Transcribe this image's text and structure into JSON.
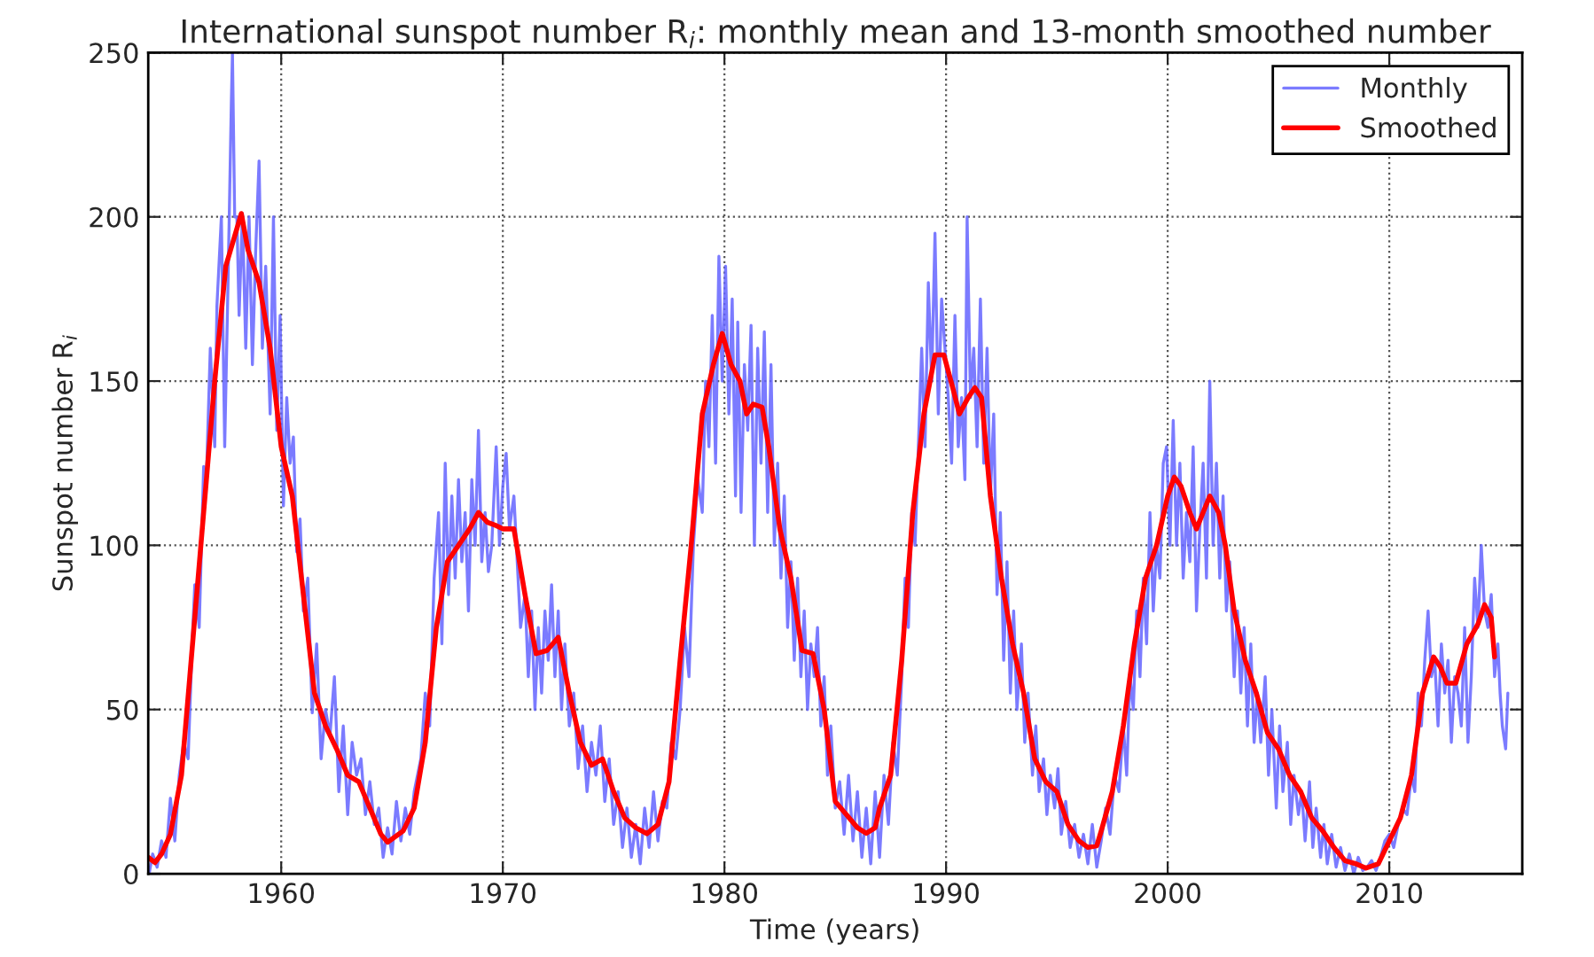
{
  "chart_data": {
    "type": "line",
    "title": "International sunspot number R$_{i}$: monthly mean and 13-month smoothed number",
    "xlabel": "Time (years)",
    "ylabel": "Sunspot number R$_{i}$",
    "xlim": [
      1954,
      2016
    ],
    "ylim": [
      0,
      250
    ],
    "xticks": [
      1960,
      1970,
      1980,
      1990,
      2000,
      2010
    ],
    "yticks": [
      0,
      50,
      100,
      150,
      200,
      250
    ],
    "grid": true,
    "legend": "top right",
    "series": [
      {
        "name": "Monthly",
        "color": "#6464ff",
        "x": [
          1954.04,
          1954.2,
          1954.4,
          1954.6,
          1954.8,
          1955.0,
          1955.2,
          1955.4,
          1955.6,
          1955.8,
          1956.0,
          1956.1,
          1956.3,
          1956.5,
          1956.6,
          1956.8,
          1957.0,
          1957.1,
          1957.3,
          1957.45,
          1957.6,
          1957.75,
          1957.8,
          1957.9,
          1958.0,
          1958.1,
          1958.25,
          1958.4,
          1958.55,
          1958.7,
          1958.85,
          1959.0,
          1959.15,
          1959.3,
          1959.5,
          1959.65,
          1959.8,
          1959.95,
          1960.1,
          1960.25,
          1960.4,
          1960.55,
          1960.7,
          1960.85,
          1961.0,
          1961.2,
          1961.4,
          1961.6,
          1961.8,
          1962.0,
          1962.2,
          1962.4,
          1962.6,
          1962.8,
          1963.0,
          1963.2,
          1963.4,
          1963.6,
          1963.8,
          1964.0,
          1964.2,
          1964.4,
          1964.6,
          1964.8,
          1965.0,
          1965.2,
          1965.4,
          1965.6,
          1965.8,
          1966.0,
          1966.3,
          1966.5,
          1966.7,
          1966.9,
          1967.1,
          1967.25,
          1967.4,
          1967.55,
          1967.7,
          1967.85,
          1968.0,
          1968.15,
          1968.3,
          1968.45,
          1968.6,
          1968.75,
          1968.9,
          1969.05,
          1969.2,
          1969.35,
          1969.5,
          1969.7,
          1969.85,
          1970.0,
          1970.15,
          1970.3,
          1970.5,
          1970.65,
          1970.8,
          1971.0,
          1971.15,
          1971.3,
          1971.45,
          1971.6,
          1971.75,
          1971.9,
          1972.05,
          1972.2,
          1972.35,
          1972.5,
          1972.65,
          1972.8,
          1973.0,
          1973.2,
          1973.4,
          1973.6,
          1973.8,
          1974.0,
          1974.2,
          1974.4,
          1974.6,
          1974.8,
          1975.0,
          1975.2,
          1975.4,
          1975.6,
          1975.8,
          1976.0,
          1976.2,
          1976.4,
          1976.6,
          1976.8,
          1977.0,
          1977.2,
          1977.4,
          1977.6,
          1977.8,
          1978.0,
          1978.2,
          1978.4,
          1978.6,
          1978.8,
          1979.0,
          1979.15,
          1979.3,
          1979.45,
          1979.6,
          1979.75,
          1979.9,
          1980.05,
          1980.2,
          1980.35,
          1980.5,
          1980.6,
          1980.75,
          1980.9,
          1981.05,
          1981.2,
          1981.35,
          1981.5,
          1981.65,
          1981.8,
          1981.95,
          1982.1,
          1982.25,
          1982.4,
          1982.55,
          1982.7,
          1982.85,
          1983.0,
          1983.15,
          1983.3,
          1983.45,
          1983.6,
          1983.75,
          1983.9,
          1984.05,
          1984.2,
          1984.35,
          1984.5,
          1984.65,
          1984.8,
          1985.0,
          1985.2,
          1985.4,
          1985.6,
          1985.8,
          1986.0,
          1986.2,
          1986.4,
          1986.6,
          1986.8,
          1987.0,
          1987.2,
          1987.4,
          1987.6,
          1987.8,
          1988.0,
          1988.15,
          1988.3,
          1988.45,
          1988.6,
          1988.75,
          1988.9,
          1989.05,
          1989.2,
          1989.35,
          1989.5,
          1989.65,
          1989.8,
          1989.95,
          1990.1,
          1990.25,
          1990.4,
          1990.55,
          1990.7,
          1990.85,
          1990.95,
          1991.1,
          1991.25,
          1991.4,
          1991.55,
          1991.7,
          1991.85,
          1992.0,
          1992.15,
          1992.3,
          1992.45,
          1992.6,
          1992.75,
          1992.9,
          1993.05,
          1993.2,
          1993.4,
          1993.55,
          1993.7,
          1993.9,
          1994.05,
          1994.2,
          1994.4,
          1994.55,
          1994.7,
          1994.9,
          1995.05,
          1995.2,
          1995.4,
          1995.6,
          1995.8,
          1996.0,
          1996.2,
          1996.4,
          1996.6,
          1996.8,
          1997.0,
          1997.2,
          1997.4,
          1997.6,
          1997.8,
          1998.0,
          1998.15,
          1998.3,
          1998.45,
          1998.6,
          1998.75,
          1998.9,
          1999.05,
          1999.2,
          1999.35,
          1999.5,
          1999.65,
          1999.8,
          1999.95,
          2000.1,
          2000.25,
          2000.4,
          2000.55,
          2000.7,
          2000.85,
          2001.0,
          2001.15,
          2001.3,
          2001.45,
          2001.6,
          2001.75,
          2001.9,
          2002.05,
          2002.2,
          2002.35,
          2002.5,
          2002.65,
          2002.8,
          2003.0,
          2003.15,
          2003.3,
          2003.45,
          2003.6,
          2003.75,
          2003.9,
          2004.05,
          2004.2,
          2004.4,
          2004.55,
          2004.7,
          2004.9,
          2005.05,
          2005.2,
          2005.4,
          2005.55,
          2005.7,
          2005.9,
          2006.05,
          2006.2,
          2006.4,
          2006.55,
          2006.7,
          2006.9,
          2007.05,
          2007.2,
          2007.4,
          2007.6,
          2007.8,
          2008.0,
          2008.2,
          2008.4,
          2008.6,
          2008.8,
          2009.0,
          2009.2,
          2009.4,
          2009.6,
          2009.8,
          2010.0,
          2010.2,
          2010.4,
          2010.6,
          2010.8,
          2011.0,
          2011.15,
          2011.3,
          2011.45,
          2011.6,
          2011.75,
          2011.9,
          2012.05,
          2012.2,
          2012.35,
          2012.5,
          2012.65,
          2012.8,
          2012.95,
          2013.1,
          2013.25,
          2013.4,
          2013.55,
          2013.7,
          2013.85,
          2014.0,
          2014.15,
          2014.3,
          2014.45,
          2014.6,
          2014.75,
          2014.9,
          2015.0,
          2015.1,
          2015.25,
          2015.35
        ],
        "values": [
          0,
          6,
          2,
          10,
          5,
          23,
          10,
          30,
          40,
          35,
          73,
          88,
          75,
          124,
          115,
          160,
          130,
          173,
          200,
          130,
          180,
          235,
          250,
          200,
          200,
          170,
          201,
          160,
          200,
          155,
          190,
          217,
          160,
          185,
          140,
          200,
          135,
          170,
          112,
          145,
          125,
          133,
          98,
          108,
          80,
          90,
          49,
          70,
          35,
          50,
          42,
          60,
          25,
          45,
          18,
          40,
          30,
          35,
          18,
          28,
          15,
          20,
          5,
          14,
          6,
          22,
          10,
          20,
          12,
          25,
          35,
          55,
          45,
          90,
          110,
          70,
          125,
          85,
          115,
          90,
          120,
          95,
          110,
          80,
          120,
          100,
          135,
          95,
          110,
          92,
          100,
          130,
          100,
          118,
          128,
          105,
          115,
          95,
          75,
          85,
          60,
          80,
          50,
          75,
          55,
          80,
          65,
          88,
          60,
          80,
          50,
          70,
          45,
          55,
          32,
          45,
          25,
          40,
          30,
          45,
          22,
          35,
          15,
          25,
          8,
          20,
          5,
          15,
          3,
          20,
          8,
          25,
          10,
          22,
          20,
          40,
          35,
          50,
          75,
          60,
          100,
          120,
          110,
          150,
          130,
          170,
          125,
          188,
          150,
          185,
          140,
          175,
          115,
          168,
          110,
          155,
          135,
          167,
          100,
          160,
          125,
          165,
          110,
          155,
          100,
          125,
          90,
          115,
          75,
          95,
          65,
          90,
          60,
          80,
          50,
          70,
          60,
          75,
          45,
          60,
          30,
          45,
          20,
          28,
          12,
          30,
          10,
          25,
          5,
          20,
          3,
          25,
          5,
          30,
          15,
          40,
          30,
          60,
          90,
          75,
          110,
          100,
          130,
          160,
          130,
          180,
          150,
          195,
          140,
          175,
          160,
          145,
          125,
          170,
          130,
          145,
          120,
          200,
          145,
          160,
          130,
          175,
          125,
          160,
          115,
          140,
          85,
          110,
          65,
          95,
          55,
          80,
          50,
          70,
          40,
          55,
          30,
          45,
          25,
          35,
          18,
          30,
          20,
          32,
          12,
          22,
          8,
          15,
          5,
          12,
          3,
          15,
          2,
          10,
          20,
          12,
          30,
          25,
          45,
          30,
          60,
          50,
          80,
          60,
          90,
          70,
          110,
          80,
          100,
          90,
          125,
          130,
          100,
          138,
          100,
          125,
          90,
          110,
          95,
          130,
          80,
          105,
          125,
          90,
          150,
          100,
          125,
          90,
          115,
          80,
          95,
          60,
          80,
          55,
          75,
          45,
          70,
          40,
          55,
          40,
          60,
          30,
          50,
          20,
          45,
          25,
          40,
          15,
          30,
          18,
          25,
          10,
          28,
          8,
          20,
          5,
          15,
          3,
          12,
          2,
          8,
          1,
          6,
          0,
          5,
          1,
          2,
          4,
          1,
          5,
          10,
          12,
          8,
          15,
          20,
          18,
          30,
          25,
          55,
          45,
          65,
          80,
          60,
          65,
          45,
          70,
          55,
          65,
          40,
          60,
          55,
          45,
          75,
          40,
          60,
          90,
          75,
          100,
          80,
          75,
          85,
          60,
          70,
          55,
          45,
          38,
          55
        ]
      },
      {
        "name": "Smoothed",
        "color": "#ff0000",
        "x": [
          1954.0,
          1954.3,
          1954.6,
          1955.0,
          1955.5,
          1956.0,
          1956.5,
          1957.0,
          1957.5,
          1958.2,
          1958.5,
          1959.0,
          1959.5,
          1960.0,
          1960.5,
          1961.0,
          1961.5,
          1962.0,
          1962.5,
          1963.0,
          1963.5,
          1964.0,
          1964.5,
          1964.8,
          1965.5,
          1966.0,
          1966.5,
          1967.0,
          1967.5,
          1968.0,
          1968.5,
          1968.9,
          1969.3,
          1969.7,
          1970.0,
          1970.5,
          1971.0,
          1971.5,
          1972.0,
          1972.5,
          1973.0,
          1973.5,
          1974.0,
          1974.5,
          1975.0,
          1975.5,
          1976.0,
          1976.5,
          1977.0,
          1977.5,
          1978.0,
          1978.5,
          1979.0,
          1979.5,
          1979.9,
          1980.3,
          1980.7,
          1981.0,
          1981.3,
          1981.7,
          1982.0,
          1982.5,
          1983.0,
          1983.5,
          1984.0,
          1984.5,
          1985.0,
          1985.5,
          1986.0,
          1986.4,
          1986.8,
          1987.0,
          1987.5,
          1988.0,
          1988.5,
          1989.0,
          1989.5,
          1989.9,
          1990.3,
          1990.6,
          1991.0,
          1991.3,
          1991.6,
          1992.0,
          1992.5,
          1993.0,
          1993.5,
          1994.0,
          1994.5,
          1995.0,
          1995.5,
          1996.0,
          1996.4,
          1996.8,
          1997.0,
          1997.5,
          1998.0,
          1998.5,
          1999.0,
          1999.5,
          2000.0,
          2000.3,
          2000.6,
          2001.0,
          2001.3,
          2001.6,
          2001.9,
          2002.3,
          2002.6,
          2003.0,
          2003.5,
          2004.0,
          2004.5,
          2005.0,
          2005.5,
          2006.0,
          2006.5,
          2007.0,
          2007.5,
          2008.0,
          2008.5,
          2008.95,
          2009.5,
          2010.0,
          2010.5,
          2011.0,
          2011.5,
          2012.0,
          2012.3,
          2012.6,
          2013.0,
          2013.5,
          2014.0,
          2014.3,
          2014.6,
          2014.75
        ],
        "values": [
          5,
          3.4,
          6,
          12,
          30,
          70,
          110,
          150,
          185,
          201,
          190,
          180,
          160,
          130,
          115,
          85,
          55,
          45,
          38,
          30,
          28,
          20,
          12,
          9.6,
          13,
          20,
          40,
          75,
          95,
          100,
          105,
          110,
          107,
          106,
          105,
          105,
          85,
          67,
          68,
          72,
          55,
          40,
          33,
          35,
          25,
          17,
          14,
          12.2,
          15,
          28,
          65,
          100,
          140,
          155,
          164.5,
          155,
          150,
          140,
          143,
          142,
          130,
          105,
          90,
          68,
          67,
          50,
          22,
          18,
          14,
          12.3,
          14,
          20,
          30,
          65,
          110,
          140,
          158,
          158,
          148,
          140,
          145,
          148,
          145,
          115,
          90,
          70,
          55,
          35,
          28,
          25,
          15,
          10,
          8,
          8.5,
          13,
          25,
          45,
          70,
          90,
          100,
          115,
          120.8,
          118,
          110,
          105,
          110,
          115,
          110,
          100,
          80,
          65,
          55,
          43,
          38,
          30,
          25,
          17,
          13,
          8,
          4,
          3,
          1.7,
          3,
          10,
          17,
          30,
          55,
          66,
          63,
          58,
          58,
          70,
          76,
          81.9,
          78,
          66
        ]
      }
    ]
  }
}
